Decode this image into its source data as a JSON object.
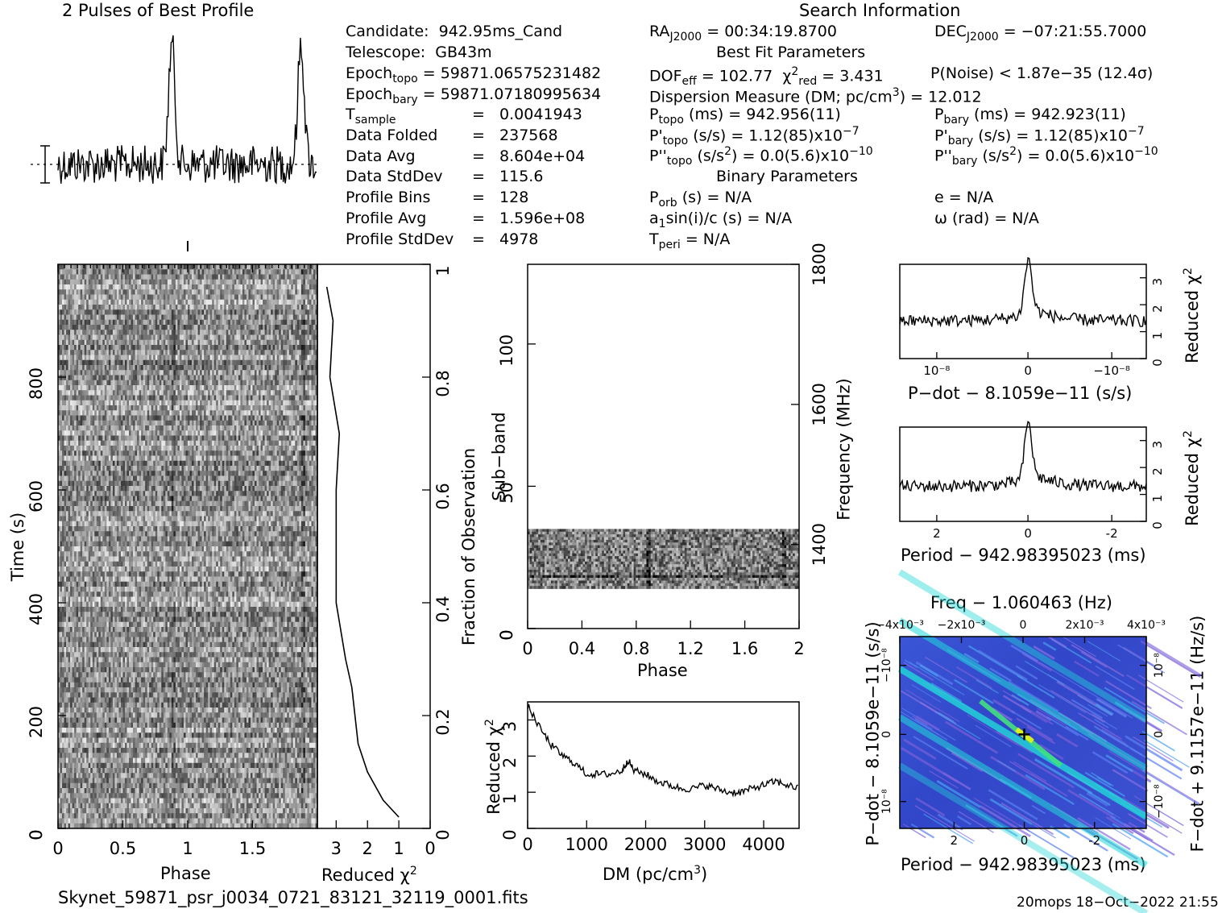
{
  "header": {
    "profile_title": "2 Pulses of Best Profile",
    "search_title": "Search Information",
    "best_fit_title": "Best Fit Parameters",
    "binary_title": "Binary Parameters"
  },
  "info_left": [
    {
      "label": "Candidate:",
      "value": "942.95ms_Cand"
    },
    {
      "label": "Telescope:",
      "value": "GB43m"
    },
    {
      "label": "Epoch",
      "sub": "topo",
      "value": "= 59871.06575231482"
    },
    {
      "label": "Epoch",
      "sub": "bary",
      "value": "= 59871.07180995634"
    },
    {
      "label": "T",
      "sub": "sample",
      "value": "0.0041943"
    },
    {
      "label": "Data Folded",
      "value": "237568"
    },
    {
      "label": "Data Avg",
      "value": "8.604e+04"
    },
    {
      "label": "Data StdDev",
      "value": "115.6"
    },
    {
      "label": "Profile Bins",
      "value": "128"
    },
    {
      "label": "Profile Avg",
      "value": "1.596e+08"
    },
    {
      "label": "Profile StdDev",
      "value": "4978"
    }
  ],
  "info_search": {
    "ra": "RA",
    "ra_sub": "J2000",
    "ra_value": "= 00:34:19.8700",
    "dec": "DEC",
    "dec_sub": "J2000",
    "dec_value": "= −07:21:55.7000",
    "dof": "DOF",
    "dof_sub": "eff",
    "dof_value": "= 102.77",
    "chi": "χ",
    "chi_sub": "red",
    "chi_value": "= 3.431",
    "pnoise": "P(Noise) < 1.87e−35  (12.4σ)",
    "dm_line": "Dispersion Measure (DM; pc/cm",
    "dm_line_end": ") = 12.012",
    "ptopo": "P",
    "ptopo_sub": "topo",
    "ptopo_value": "(ms) =  942.956(11)",
    "pbary": "P",
    "pbary_sub": "bary",
    "pbary_value": "(ms) =  942.923(11)",
    "pdtopo_value": "(s/s) =  1.12(85)x10",
    "pdtopo_exp": "−7",
    "pdbary_value": "(s/s) =  1.12(85)x10",
    "pdbary_exp": "−7",
    "pddtopo_value": ") = 0.0(5.6)x10",
    "pddtopo_exp": "−10",
    "pddbary_value": ") = 0.0(5.6)x10",
    "pddbary_exp": "−10",
    "porb": "(s) = N/A",
    "asini": "a",
    "asini_value": "sin(i)/c (s) = N/A",
    "tperi_value": "= N/A",
    "e_value": "e = N/A",
    "omega_value": "ω (rad) = N/A"
  },
  "footer": {
    "filename": "Skynet_59871_psr_j0034_0721_83121_32119_0001.fits",
    "stamp": "20mops 18−Oct−2022 21:55"
  },
  "axes": {
    "time_ylabel": "Time (s)",
    "phase_xlabel": "Phase",
    "redchi_xlabel": "Reduced χ",
    "fraction_label": "Fraction of Observation",
    "subband_label": "Sub−band",
    "freq_label": "Frequency (MHz)",
    "dm_xlabel": "DM (pc/cm",
    "dm_xlabel_end": ")",
    "redchi_label": "Reduced χ",
    "pdot_xlabel": "P−dot − 8.1059e−11 (s/s)",
    "period_xlabel": "Period − 942.98395023 (ms)",
    "period2_xlabel": "Period − 942.98395023 (ms)",
    "freq_top_label": "Freq − 1.060463 (Hz)",
    "pdot_ylabel": "P−dot − 8.1059e−11 (s/s)",
    "fdot_ylabel": "F−dot + 9.1157e−11 (Hz/s)"
  },
  "chart_data": [
    {
      "type": "line",
      "name": "pulse-profile",
      "title": "2 Pulses of Best Profile",
      "x": [
        0,
        2
      ],
      "peaks_at_phase": [
        0.88,
        1.88
      ],
      "note_marker": "1 sigma bar"
    },
    {
      "type": "heatmap",
      "name": "time-phase",
      "xlabel": "Phase",
      "ylabel": "Time (s)",
      "xlim": [
        0,
        2
      ],
      "ylim": [
        0,
        1000
      ],
      "xticks": [
        0,
        0.5,
        1,
        1.5
      ],
      "yticks": [
        0,
        200,
        400,
        600,
        800
      ]
    },
    {
      "type": "line",
      "name": "redchi-vs-time",
      "xlabel": "Reduced χ²",
      "xticks": [
        3,
        2,
        1,
        0
      ],
      "ylabel": "Fraction of Observation",
      "yticks": [
        0,
        0.2,
        0.4,
        0.6,
        0.8,
        1
      ],
      "y": [
        0.02,
        0.05,
        0.1,
        0.15,
        0.2,
        0.25,
        0.3,
        0.4,
        0.5,
        0.6,
        0.7,
        0.8,
        0.9,
        0.96
      ],
      "x": [
        1.0,
        1.5,
        2.0,
        2.3,
        2.4,
        2.5,
        2.7,
        3.0,
        3.0,
        3.0,
        2.9,
        3.2,
        3.1,
        3.3
      ]
    },
    {
      "type": "heatmap",
      "name": "subband-phase",
      "xlabel": "Phase",
      "ylabel": "Sub−band",
      "xlim": [
        0,
        2
      ],
      "ylim": [
        0,
        128
      ],
      "xticks": [
        0,
        0.4,
        0.8,
        1.2,
        1.6,
        2
      ],
      "yticks": [
        0,
        50,
        100
      ],
      "right_ylabel": "Frequency (MHz)",
      "right_yticks": [
        1400,
        1600,
        1800
      ],
      "band_rows": [
        14,
        35
      ]
    },
    {
      "type": "line",
      "name": "redchi-vs-dm",
      "xlabel": "DM (pc/cm³)",
      "ylabel": "Reduced χ²",
      "xlim": [
        0,
        4600
      ],
      "ylim": [
        0,
        3.5
      ],
      "xticks": [
        0,
        1000,
        2000,
        3000,
        4000
      ],
      "yticks": [
        0,
        1,
        2,
        3
      ],
      "x": [
        0,
        200,
        400,
        600,
        800,
        1000,
        1200,
        1400,
        1600,
        1700,
        1800,
        2000,
        2200,
        2400,
        2600,
        2800,
        3000,
        3200,
        3400,
        3600,
        3800,
        4000,
        4200,
        4400,
        4600
      ],
      "y": [
        3.4,
        2.8,
        2.3,
        2.0,
        1.8,
        1.5,
        1.5,
        1.5,
        1.6,
        1.9,
        1.6,
        1.5,
        1.3,
        1.2,
        1.1,
        1.1,
        1.2,
        1.1,
        1.0,
        1.0,
        1.1,
        1.2,
        1.3,
        1.2,
        1.1
      ]
    },
    {
      "type": "line",
      "name": "redchi-vs-pdot",
      "xlabel": "P−dot − 8.1059e−11 (s/s)",
      "ylabel": "Reduced χ²",
      "xticks": [
        "10⁻⁸",
        "0",
        "−10⁻⁸"
      ],
      "yticks": [
        0,
        1,
        2,
        3
      ],
      "ylim": [
        0,
        3.5
      ],
      "peak": 3.3,
      "baseline": 1.4
    },
    {
      "type": "line",
      "name": "redchi-vs-period",
      "xlabel": "Period − 942.98395023 (ms)",
      "ylabel": "Reduced χ²",
      "xticks": [
        2,
        0,
        -2
      ],
      "yticks": [
        0,
        1,
        2,
        3
      ],
      "ylim": [
        0,
        3.5
      ],
      "peak": 3.3,
      "baseline": 1.3
    },
    {
      "type": "heatmap",
      "name": "period-pdot",
      "xlabel": "Period − 942.98395023 (ms)",
      "xticks": [
        2,
        0,
        -2
      ],
      "top_label": "Freq − 1.060463 (Hz)",
      "top_xticks": [
        "−4x10⁻³",
        "−2x10⁻³",
        "0",
        "2x10⁻³",
        "4x10⁻³"
      ],
      "left_yticks": [
        "10⁻⁸",
        "0",
        "−10⁻⁸"
      ],
      "right_yticks": [
        "−10⁻⁸",
        "0",
        "10⁻⁸"
      ]
    }
  ]
}
